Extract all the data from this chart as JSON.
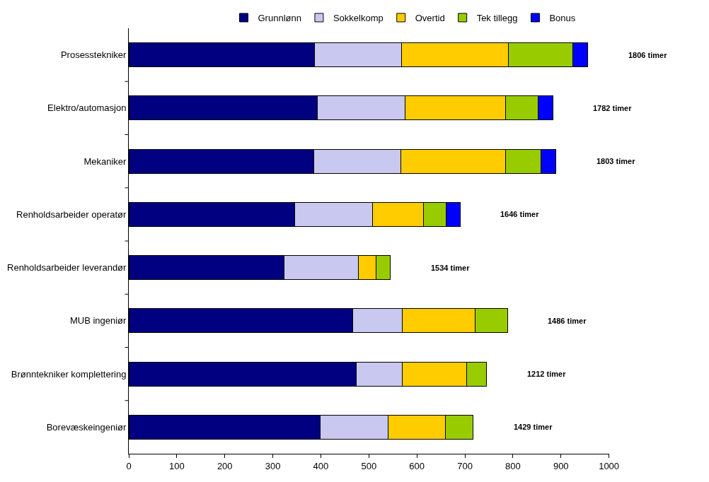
{
  "chart_data": {
    "type": "bar",
    "orientation": "horizontal",
    "stacked": true,
    "legend": "top",
    "categories": [
      "Prosesstekniker",
      "Elektro/automasjon",
      "Mekaniker",
      "Renholdsarbeider operatør",
      "Renholdsarbeider leverandør",
      "MUB ingeniør",
      "Brønntekniker komplettering",
      "Borevæskeingeniør"
    ],
    "series": [
      {
        "name": "Grunnlønn",
        "color": "#000080",
        "values": [
          387,
          392,
          386,
          345,
          324,
          466,
          474,
          398
        ]
      },
      {
        "name": "Sokkelkomp",
        "color": "#c8c8f0",
        "values": [
          181,
          183,
          181,
          162,
          154,
          104,
          96,
          142
        ]
      },
      {
        "name": "Overtid",
        "color": "#ffcc00",
        "values": [
          223,
          210,
          218,
          107,
          37,
          151,
          134,
          120
        ]
      },
      {
        "name": "Tek tillegg",
        "color": "#99cc00",
        "values": [
          133,
          67,
          73,
          47,
          30,
          68,
          41,
          57
        ]
      },
      {
        "name": "Bonus",
        "color": "#0000ff",
        "values": [
          32,
          31,
          32,
          29,
          null,
          null,
          null,
          null
        ]
      }
    ],
    "xlim": [
      0,
      1000
    ],
    "xticks": [
      0,
      100,
      200,
      300,
      400,
      500,
      600,
      700,
      800,
      900,
      1000
    ],
    "annotations": [
      "1806 timer",
      "1782 timer",
      "1803 timer",
      "1646 timer",
      "1534 timer",
      "1486 timer",
      "1212 timer",
      "1429 timer"
    ]
  }
}
